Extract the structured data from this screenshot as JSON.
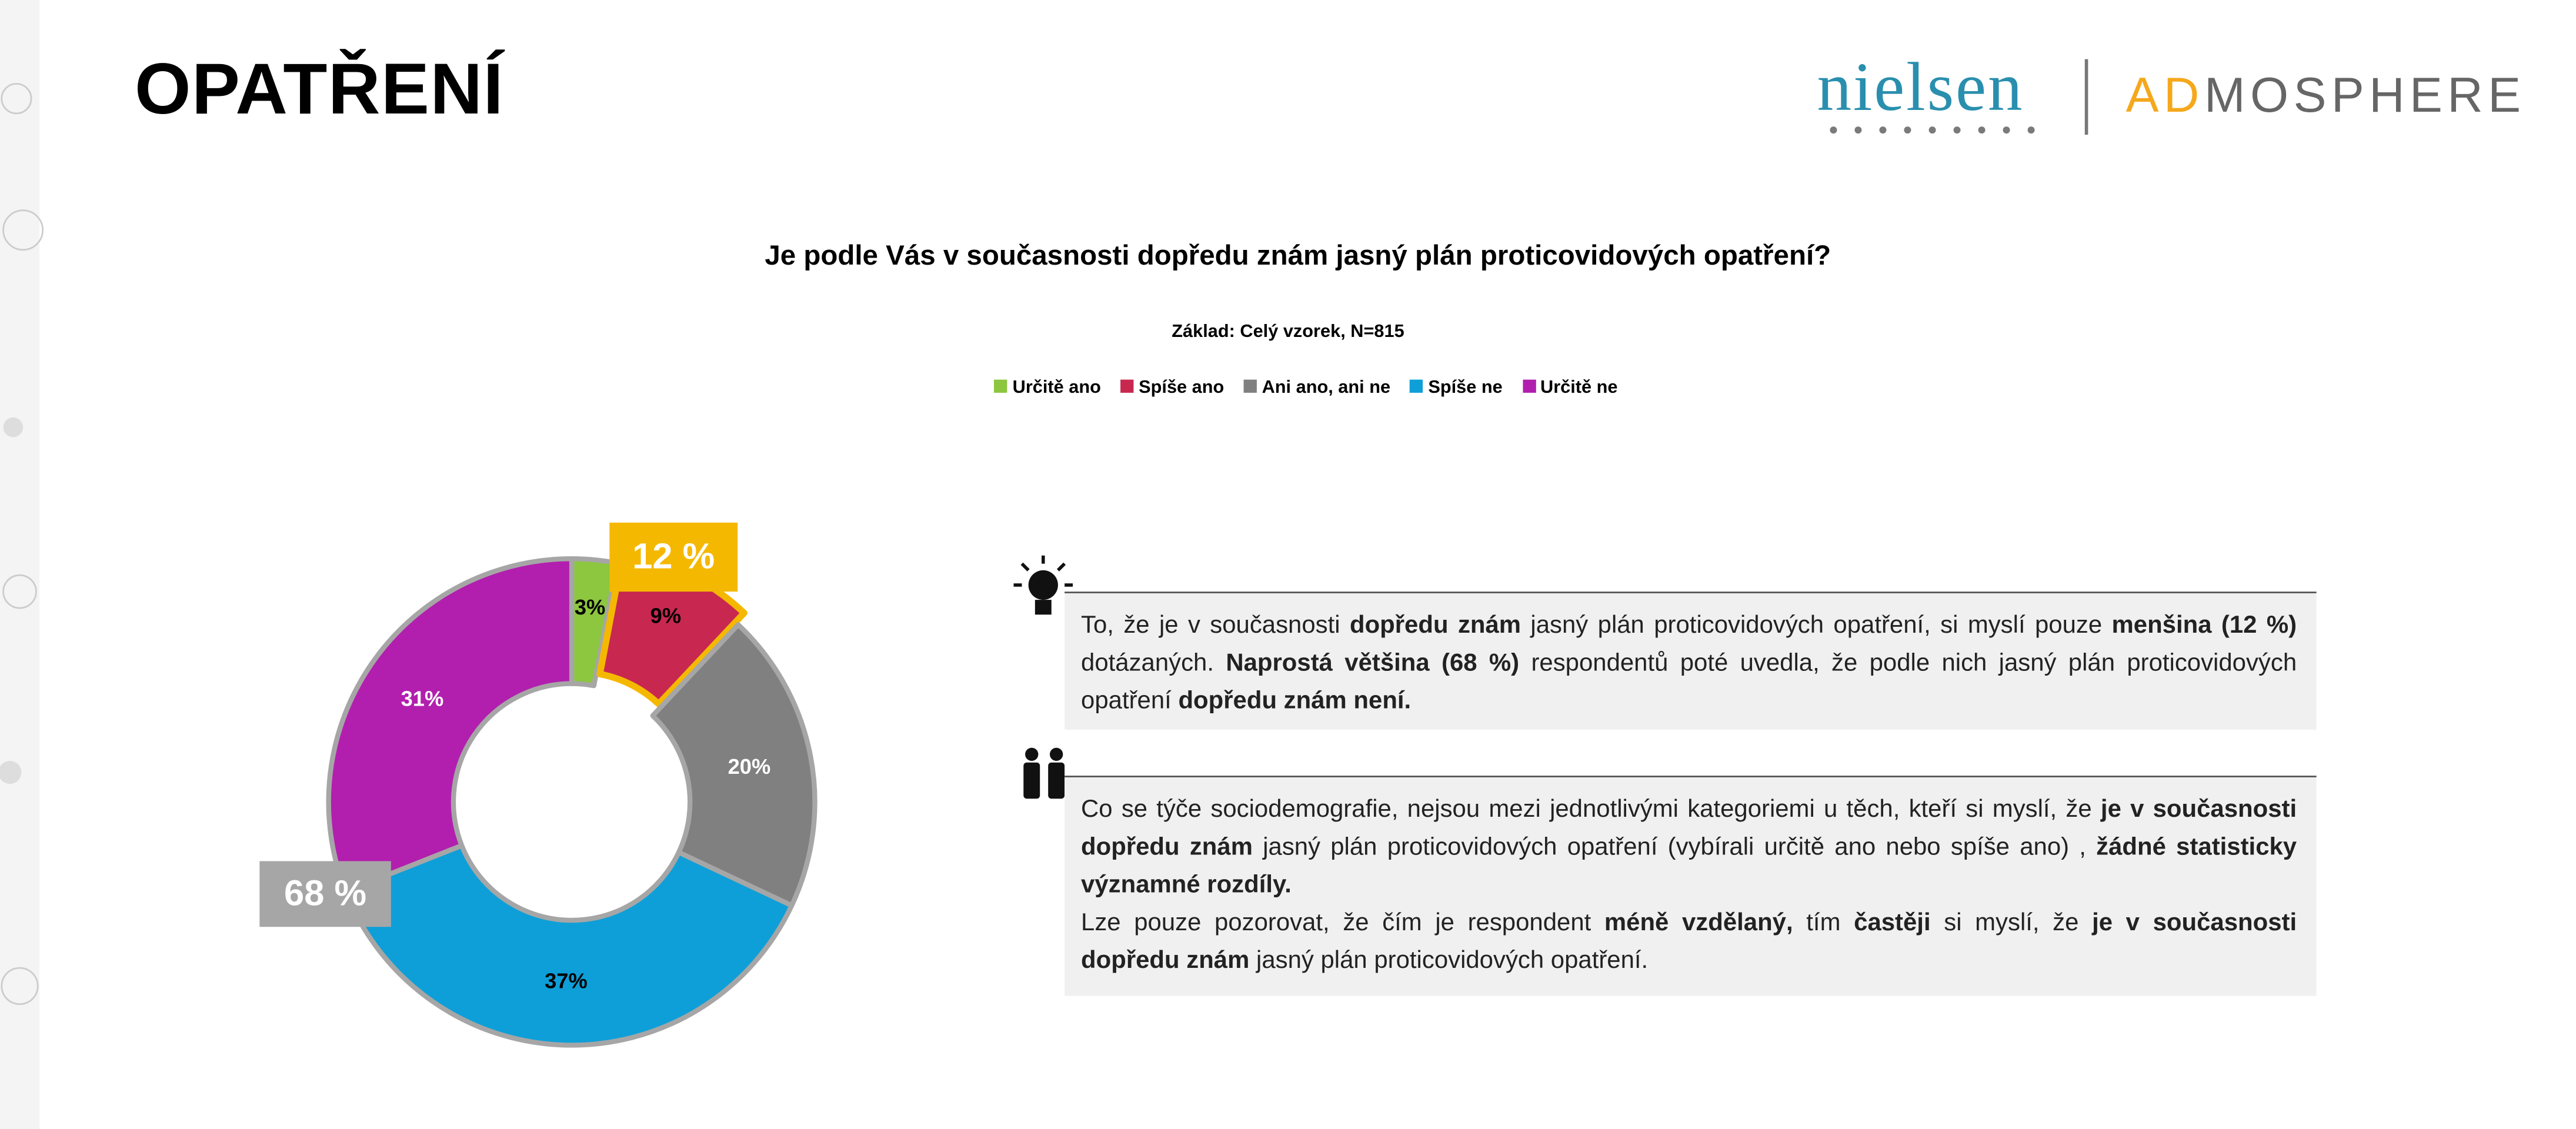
{
  "slide_title": "OPATŘENÍ",
  "logo": {
    "nielsen": "nielsen",
    "admosphere_accent": "AD",
    "admosphere_rest": "MOSPHERE"
  },
  "chart_data": {
    "type": "donut",
    "title": "Je podle Vás v současnosti dopředu znám jasný plán proticovidových opatření?",
    "subtitle": "Základ: Celý vzorek, N=815",
    "categories": [
      "Určitě ano",
      "Spíše ano",
      "Ani ano, ani ne",
      "Spíše ne",
      "Určitě ne"
    ],
    "values": [
      3,
      9,
      20,
      37,
      31
    ],
    "value_labels": [
      "3%",
      "9%",
      "20%",
      "37%",
      "31%"
    ],
    "colors": [
      "#8dc63f",
      "#c8284f",
      "#808080",
      "#0e9fd8",
      "#b21fae"
    ],
    "label_colors": [
      "#000000",
      "#000000",
      "#ffffff",
      "#000000",
      "#ffffff"
    ],
    "annotations": [
      {
        "value": 12,
        "label": "12 %",
        "color": "#f5b800"
      },
      {
        "value": 68,
        "label": "68 %",
        "color": "#a6a6a6"
      }
    ]
  },
  "notes": [
    {
      "paragraphs": [
        [
          {
            "text": "To, že je v současnosti ",
            "bold": false
          },
          {
            "text": "dopředu znám",
            "bold": true
          },
          {
            "text": " jasný plán proticovidových opatření, si myslí pouze ",
            "bold": false
          },
          {
            "text": "menšina (12 %)",
            "bold": true
          },
          {
            "text": " dotázaných. ",
            "bold": false
          },
          {
            "text": "Naprostá většina (68 %)",
            "bold": true
          },
          {
            "text": " respondentů poté uvedla, že podle nich jasný plán proticovidových opatření ",
            "bold": false
          },
          {
            "text": "dopředu znám není.",
            "bold": true
          }
        ]
      ]
    },
    {
      "paragraphs": [
        [
          {
            "text": "Co se týče sociodemografie, nejsou mezi jednotlivými kategoriemi u těch, kteří si myslí, že ",
            "bold": false
          },
          {
            "text": "je v současnosti dopředu znám",
            "bold": true
          },
          {
            "text": " jasný plán proticovidových opatření (vybírali určitě ano nebo spíše ano) , ",
            "bold": false
          },
          {
            "text": "žádné statisticky významné rozdíly.",
            "bold": true
          }
        ],
        [
          {
            "text": "Lze pouze pozorovat, že čím je respondent ",
            "bold": false
          },
          {
            "text": "méně vzdělaný,",
            "bold": true
          },
          {
            "text": " tím ",
            "bold": false
          },
          {
            "text": "častěji",
            "bold": true
          },
          {
            "text": " si myslí, že ",
            "bold": false
          },
          {
            "text": "je v současnosti dopředu znám",
            "bold": true
          },
          {
            "text": " jasný plán proticovidových opatření.",
            "bold": false
          }
        ]
      ]
    }
  ]
}
